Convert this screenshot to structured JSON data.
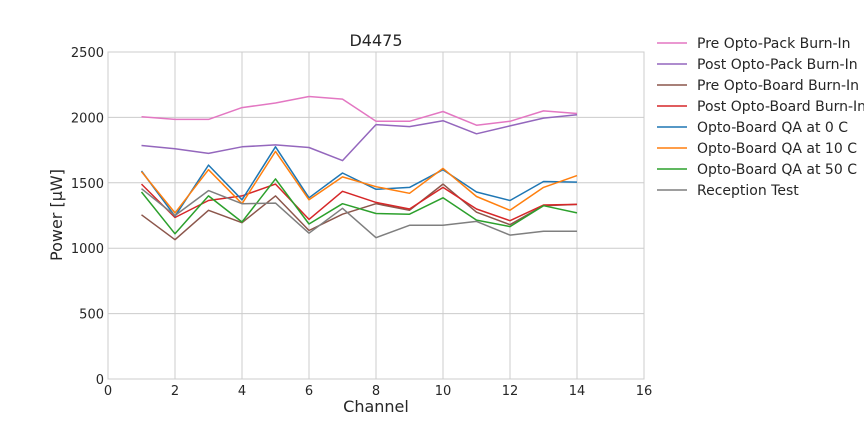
{
  "chart_data": {
    "type": "line",
    "title": "D4475",
    "xlabel": "Channel",
    "ylabel": "Power [μW]",
    "xlim": [
      0,
      16
    ],
    "ylim": [
      0,
      2500
    ],
    "xticks": [
      0,
      2,
      4,
      6,
      8,
      10,
      12,
      14,
      16
    ],
    "yticks": [
      0,
      500,
      1000,
      1500,
      2000,
      2500
    ],
    "grid": true,
    "legend_position": "outside-right",
    "x": [
      1,
      2,
      3,
      4,
      5,
      6,
      7,
      8,
      9,
      10,
      11,
      12,
      13,
      14
    ],
    "series": [
      {
        "name": "Pre Opto-Pack Burn-In",
        "color": "#e377c2",
        "values": [
          2005,
          1985,
          1985,
          2075,
          2110,
          2160,
          2140,
          1970,
          1970,
          2045,
          1940,
          1970,
          2050,
          2030
        ]
      },
      {
        "name": "Post Opto-Pack Burn-In",
        "color": "#9467bd",
        "values": [
          1785,
          1760,
          1725,
          1775,
          1790,
          1770,
          1670,
          1945,
          1930,
          1975,
          1875,
          1935,
          1995,
          2020
        ]
      },
      {
        "name": "Pre Opto-Board Burn-In",
        "color": "#8c564b",
        "values": [
          1255,
          1065,
          1290,
          1195,
          1400,
          1135,
          1260,
          1340,
          1290,
          1490,
          1275,
          1180,
          1325,
          1335
        ]
      },
      {
        "name": "Post Opto-Board Burn-In",
        "color": "#d62728",
        "values": [
          1490,
          1235,
          1365,
          1400,
          1490,
          1220,
          1435,
          1350,
          1300,
          1465,
          1300,
          1210,
          1330,
          1335
        ]
      },
      {
        "name": "Opto-Board QA at 0 C",
        "color": "#1f77b4",
        "values": [
          1590,
          1245,
          1635,
          1370,
          1775,
          1385,
          1575,
          1450,
          1465,
          1600,
          1430,
          1365,
          1510,
          1505
        ]
      },
      {
        "name": "Opto-Board QA at 10 C",
        "color": "#ff7f0e",
        "values": [
          1585,
          1270,
          1600,
          1340,
          1740,
          1370,
          1545,
          1470,
          1420,
          1610,
          1395,
          1290,
          1465,
          1555
        ]
      },
      {
        "name": "Opto-Board QA at 50 C",
        "color": "#2ca02c",
        "values": [
          1430,
          1110,
          1400,
          1200,
          1530,
          1185,
          1340,
          1265,
          1260,
          1385,
          1215,
          1165,
          1325,
          1270
        ]
      },
      {
        "name": "Reception Test",
        "color": "#7f7f7f",
        "values": [
          1455,
          1250,
          1440,
          1340,
          1345,
          1115,
          1305,
          1080,
          1175,
          1175,
          1205,
          1100,
          1130,
          1130
        ]
      }
    ]
  }
}
